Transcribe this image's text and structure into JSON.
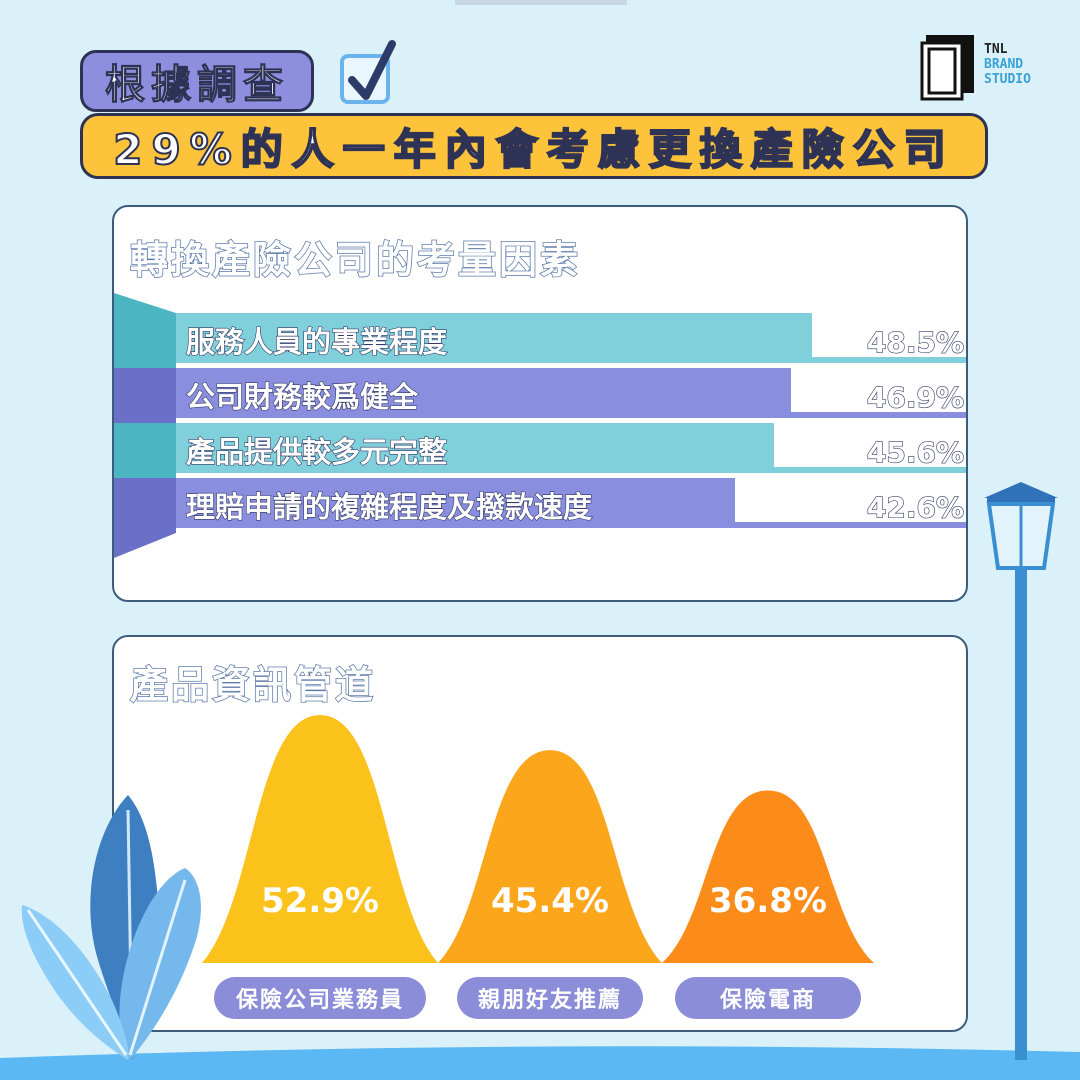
{
  "header": {
    "tag": "根據調查",
    "headline": "29%的人一年內會考慮更換產險公司"
  },
  "logo": {
    "line1": "TNL",
    "line2": "BRAND",
    "line3": "STUDIO"
  },
  "chart_data": [
    {
      "type": "bar",
      "title": "轉換產險公司的考量因素",
      "categories": [
        "服務人員的專業程度",
        "公司財務較爲健全",
        "產品提供較多元完整",
        "理賠申請的複雜程度及撥款速度"
      ],
      "values": [
        48.5,
        46.9,
        45.6,
        42.6
      ],
      "value_labels": [
        "48.5%",
        "46.9%",
        "45.6%",
        "42.6%"
      ],
      "unit": "%",
      "colors": [
        "#7fd0da",
        "#8a8ede",
        "#7fd0da",
        "#8a8ede"
      ],
      "accent_colors": [
        "#4bb5c1",
        "#6a70c8",
        "#4bb5c1",
        "#6a70c8"
      ]
    },
    {
      "type": "area",
      "title": "產品資訊管道",
      "categories": [
        "保險公司業務員",
        "親朋好友推薦",
        "保險電商"
      ],
      "values": [
        52.9,
        45.4,
        36.8
      ],
      "value_labels": [
        "52.9%",
        "45.4%",
        "36.8%"
      ],
      "unit": "%",
      "colors": [
        "#fbc21b",
        "#fca61c",
        "#fb8c1a"
      ]
    }
  ]
}
